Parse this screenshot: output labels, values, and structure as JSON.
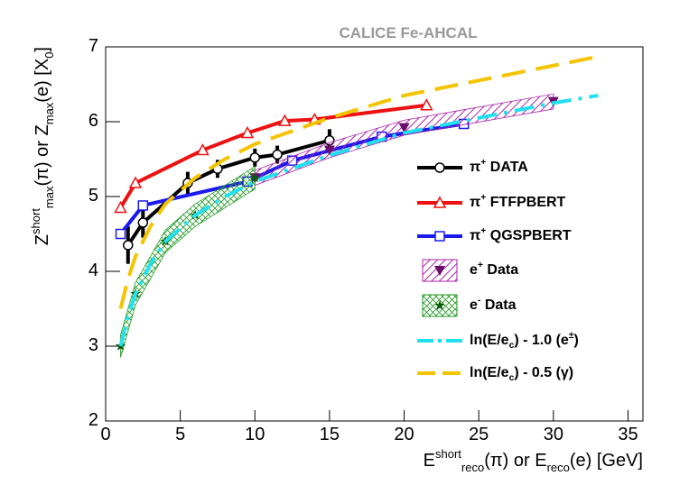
{
  "chart_data": {
    "type": "line",
    "title": "CALICE Fe-AHCAL",
    "x_label": "E^{short}_{reco}(π)  or  E_{reco}(e) [GeV]",
    "y_label": "Z^{short}_{max}(π)  or  Z_{max}(e) [X_{0}]",
    "xlim": [
      0,
      36
    ],
    "ylim": [
      2,
      7
    ],
    "xticks": [
      0,
      5,
      10,
      15,
      20,
      25,
      30,
      35
    ],
    "yticks": [
      2,
      3,
      4,
      5,
      6,
      7
    ],
    "series": [
      {
        "name": "π^{+}  DATA",
        "color": "#000000",
        "marker": "circle",
        "style": "solid",
        "x": [
          1.5,
          2.5,
          5.5,
          7.5,
          10,
          11.5,
          15
        ],
        "values": [
          4.35,
          4.65,
          5.18,
          5.37,
          5.52,
          5.56,
          5.75
        ],
        "errors": [
          0.25,
          0.2,
          0.15,
          0.12,
          0.12,
          0.12,
          0.15
        ]
      },
      {
        "name": "π^{+}  FTFP_BERT",
        "color": "#ee1111",
        "marker": "triangle",
        "style": "solid",
        "x": [
          1,
          2,
          6.5,
          9.5,
          12,
          14,
          21.5
        ],
        "values": [
          4.85,
          5.18,
          5.62,
          5.85,
          6.01,
          6.03,
          6.22
        ]
      },
      {
        "name": "π^{+}  QGSP_BERT",
        "color": "#1a1aee",
        "marker": "square",
        "style": "solid",
        "x": [
          1,
          2.5,
          9.5,
          12.5,
          18.5,
          24
        ],
        "values": [
          4.5,
          4.88,
          5.2,
          5.48,
          5.8,
          5.97
        ]
      },
      {
        "name": "e^{+}  Data",
        "color": "#6b0d6b",
        "marker": "triangle-down",
        "style": "band",
        "band": 0.1,
        "fill": "#aa22aa",
        "x": [
          10,
          15,
          20,
          30
        ],
        "values": [
          5.25,
          5.62,
          5.92,
          6.27
        ]
      },
      {
        "name": "e^{-}  Data",
        "color": "#0a5a0a",
        "marker": "star",
        "style": "band",
        "band": 0.15,
        "fill": "#229922",
        "x": [
          1,
          2,
          4,
          6,
          10
        ],
        "values": [
          3.0,
          3.7,
          4.4,
          4.75,
          5.25
        ]
      },
      {
        "name": "ln(E/e_{c}) - 1.0  (e^{±})",
        "color": "#22e0f0",
        "marker": "none",
        "style": "dashdot",
        "x": [
          1,
          1.5,
          2,
          3,
          4,
          6,
          8,
          10,
          15,
          20,
          25,
          30,
          33
        ],
        "values": [
          3.0,
          3.4,
          3.7,
          4.1,
          4.4,
          4.75,
          5.0,
          5.2,
          5.55,
          5.85,
          6.05,
          6.25,
          6.35
        ]
      },
      {
        "name": "ln(E/e_{c}) - 0.5  (γ)",
        "color": "#f5c400",
        "marker": "none",
        "style": "dash",
        "x": [
          1,
          1.5,
          2,
          3,
          4,
          6,
          8,
          10,
          15,
          20,
          25,
          30,
          33
        ],
        "values": [
          3.5,
          3.9,
          4.2,
          4.6,
          4.9,
          5.25,
          5.5,
          5.7,
          6.05,
          6.35,
          6.55,
          6.75,
          6.87
        ]
      }
    ]
  }
}
